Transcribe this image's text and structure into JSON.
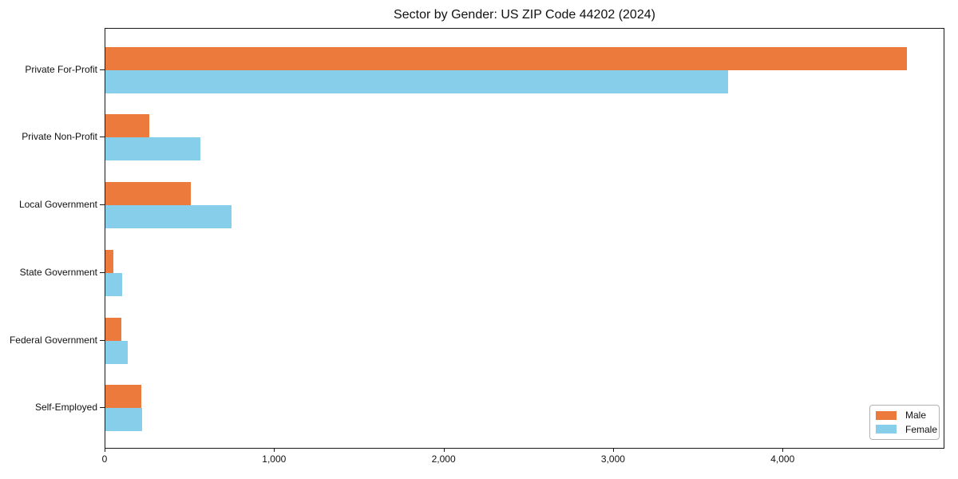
{
  "chart_data": {
    "type": "bar",
    "orientation": "horizontal",
    "title": "Sector by Gender: US ZIP Code 44202 (2024)",
    "categories": [
      "Private For-Profit",
      "Private Non-Profit",
      "Local Government",
      "State Government",
      "Federal Government",
      "Self-Employed"
    ],
    "series": [
      {
        "name": "Male",
        "color": "#EC7A3C",
        "values": [
          4727,
          257,
          503,
          48,
          92,
          213
        ]
      },
      {
        "name": "Female",
        "color": "#87CEEB",
        "values": [
          3674,
          561,
          742,
          100,
          134,
          218
        ]
      }
    ],
    "xlabel": "",
    "ylabel": "",
    "xlim": [
      0,
      4955
    ],
    "x_ticks": [
      0,
      1000,
      2000,
      3000,
      4000
    ],
    "x_tick_labels": [
      "0",
      "1,000",
      "2,000",
      "3,000",
      "4,000"
    ],
    "grid": false,
    "legend_position": "lower right"
  }
}
